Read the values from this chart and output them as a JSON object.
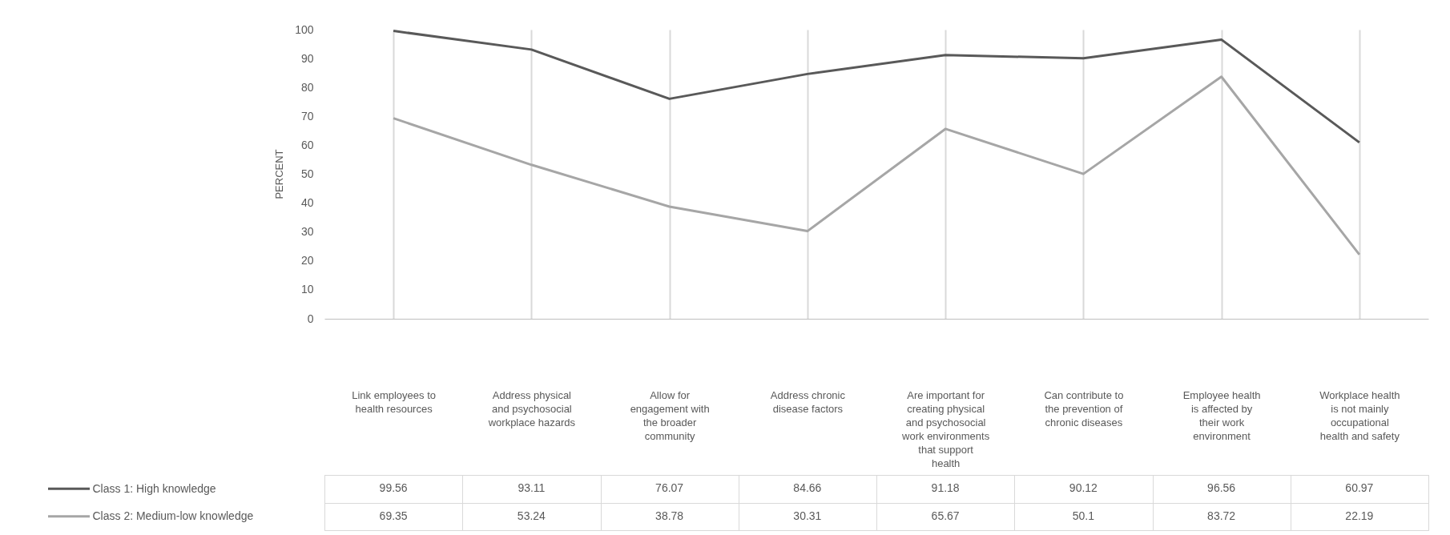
{
  "chart_data": {
    "type": "line",
    "ylabel": "PERCENT",
    "categories": [
      "Link employees to health resources",
      "Address physical and psychosocial workplace hazards",
      "Allow for engagement with the broader community",
      "Address chronic disease factors",
      "Are important for creating physical and psychosocial work environments that support health",
      "Can contribute to the prevention of chronic diseases",
      "Employee health is affected by their work environment",
      "Workplace health is not mainly occupational health and safety"
    ],
    "series": [
      {
        "name": "Class 1: High knowledge",
        "color": "#595959",
        "values": [
          99.56,
          93.11,
          76.07,
          84.66,
          91.18,
          90.12,
          96.56,
          60.97
        ]
      },
      {
        "name": "Class 2: Medium-low knowledge",
        "color": "#a6a6a6",
        "values": [
          69.35,
          53.24,
          38.78,
          30.31,
          65.67,
          50.1,
          83.72,
          22.19
        ]
      }
    ],
    "ylim": [
      0,
      100
    ],
    "yticks": [
      0,
      10,
      20,
      30,
      40,
      50,
      60,
      70,
      80,
      90,
      100
    ],
    "grid": "x",
    "legend": "bottom left",
    "data_labels": true
  }
}
